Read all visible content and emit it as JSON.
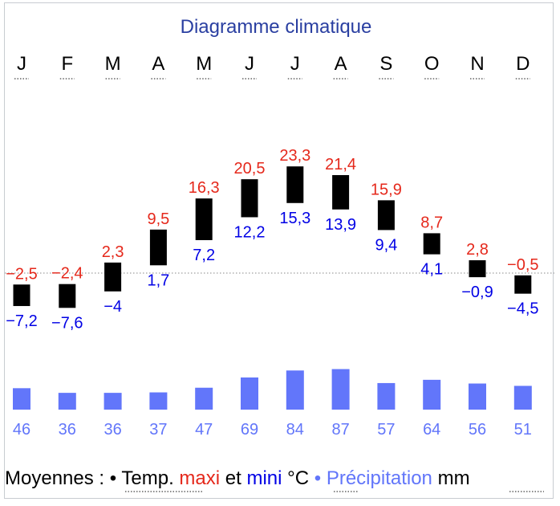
{
  "chart_data": {
    "type": "bar",
    "title": "Diagramme climatique",
    "categories": [
      "J",
      "F",
      "M",
      "A",
      "M",
      "J",
      "J",
      "A",
      "S",
      "O",
      "N",
      "D"
    ],
    "series": [
      {
        "name": "maxi",
        "values": [
          -2.5,
          -2.4,
          2.3,
          9.5,
          16.3,
          20.5,
          23.3,
          21.4,
          15.9,
          8.7,
          2.8,
          -0.5
        ]
      },
      {
        "name": "mini",
        "values": [
          -7.2,
          -7.6,
          -4,
          1.7,
          7.2,
          12.2,
          15.3,
          13.9,
          9.4,
          4.1,
          -0.9,
          -4.5
        ]
      },
      {
        "name": "Précipitation",
        "values": [
          46,
          36,
          36,
          37,
          47,
          69,
          84,
          87,
          57,
          64,
          56,
          51
        ]
      }
    ],
    "temp_labels": {
      "max": [
        "−2,5",
        "−2,4",
        "2,3",
        "9,5",
        "16,3",
        "20,5",
        "23,3",
        "21,4",
        "15,9",
        "8,7",
        "2,8",
        "−0,5"
      ],
      "min": [
        "−7,2",
        "−7,6",
        "−4",
        "1,7",
        "7,2",
        "12,2",
        "15,3",
        "13,9",
        "9,4",
        "4,1",
        "−0,9",
        "−4,5"
      ]
    },
    "precip_labels": [
      "46",
      "36",
      "36",
      "37",
      "47",
      "69",
      "84",
      "87",
      "57",
      "64",
      "56",
      "51"
    ],
    "legend": {
      "prefix": "Moyennes :",
      "bullet": "•",
      "temp": "Temp.",
      "maxi": "maxi",
      "et": "et",
      "mini": "mini",
      "unit_temp": "°C",
      "precip": "Précipitation",
      "unit_precip": "mm"
    },
    "colors": {
      "title": "#2a3fa1",
      "max": "#e5281b",
      "min": "#0000e5",
      "bar": "#000000",
      "precip": "#6276fa",
      "precip_label": "#6276fa",
      "zero_line": "#a0a0a0"
    }
  }
}
